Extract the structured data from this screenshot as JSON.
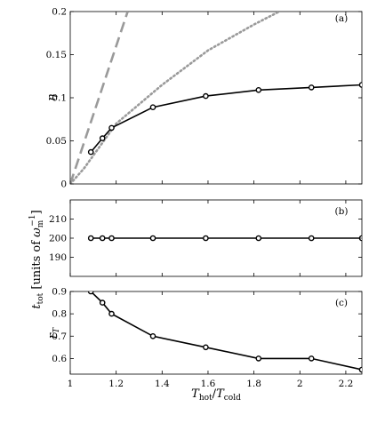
{
  "chart_data": [
    {
      "type": "line",
      "panel_label": "(a)",
      "ylabel": "η",
      "xlim": [
        1,
        2.27
      ],
      "ylim": [
        0,
        0.2
      ],
      "yticks": [
        "0",
        "0.05",
        "0.1",
        "0.15",
        "0.2"
      ],
      "series": [
        {
          "style": "dashed",
          "color": "#9a9a9a",
          "x": [
            1.0,
            1.25
          ],
          "y": [
            0.0,
            0.2
          ]
        },
        {
          "style": "dotted",
          "color": "#9a9a9a",
          "x": [
            1.0,
            1.06,
            1.2,
            1.4,
            1.6,
            1.8,
            1.91
          ],
          "y": [
            0.0,
            0.018,
            0.07,
            0.115,
            0.155,
            0.185,
            0.2
          ]
        },
        {
          "style": "solid-markers",
          "color": "#000000",
          "x": [
            1.09,
            1.14,
            1.18,
            1.36,
            1.59,
            1.82,
            2.05,
            2.27
          ],
          "y": [
            0.037,
            0.053,
            0.065,
            0.089,
            0.102,
            0.109,
            0.112,
            0.115
          ]
        }
      ]
    },
    {
      "type": "line",
      "panel_label": "(b)",
      "ylabel": "t_tot [units of ω_m^-1]",
      "xlim": [
        1,
        2.27
      ],
      "ylim": [
        180,
        220
      ],
      "yticks": [
        "190",
        "200",
        "210"
      ],
      "series": [
        {
          "style": "solid-markers",
          "color": "#000000",
          "x": [
            1.09,
            1.14,
            1.18,
            1.36,
            1.59,
            1.82,
            2.05,
            2.27
          ],
          "y": [
            200,
            200,
            200,
            200,
            200,
            200,
            200,
            200
          ]
        }
      ]
    },
    {
      "type": "line",
      "panel_label": "(c)",
      "ylabel": "r_T",
      "xlabel": "T_hot/T_cold",
      "xlim": [
        1,
        2.27
      ],
      "ylim": [
        0.53,
        0.9
      ],
      "yticks": [
        "0.6",
        "0.7",
        "0.8",
        "0.9"
      ],
      "xticks": [
        "1",
        "1.2",
        "1.4",
        "1.6",
        "1.8",
        "2",
        "2.2"
      ],
      "series": [
        {
          "style": "solid-markers",
          "color": "#000000",
          "x": [
            1.09,
            1.14,
            1.18,
            1.36,
            1.59,
            1.82,
            2.05,
            2.27
          ],
          "y": [
            0.9,
            0.85,
            0.8,
            0.7,
            0.65,
            0.6,
            0.6,
            0.55
          ]
        }
      ]
    }
  ]
}
